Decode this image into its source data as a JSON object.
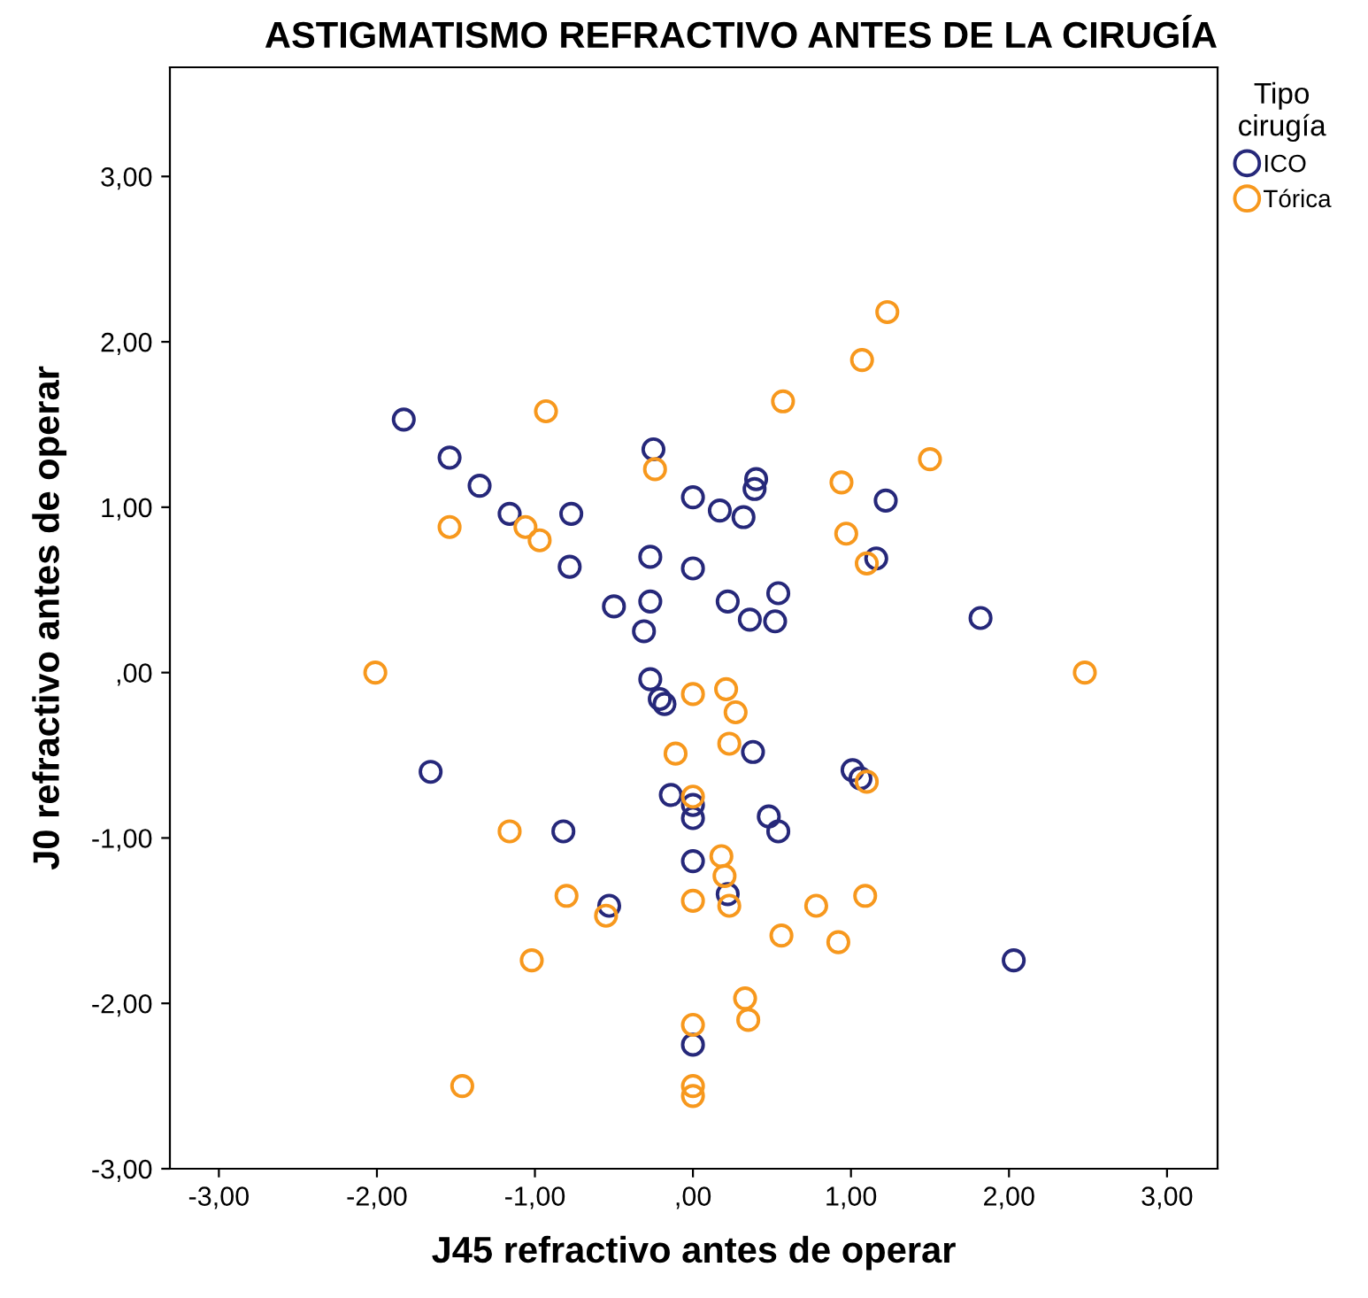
{
  "chart_data": {
    "type": "scatter",
    "title": "ASTIGMATISMO REFRACTIVO ANTES DE LA CIRUGÍA",
    "xlabel": "J45 refractivo antes de operar",
    "ylabel": "J0 refractivo antes de operar",
    "legend_title": "Tipo\ncirugía",
    "legend": "right",
    "marker": "circle",
    "grid": false,
    "xlim": [
      -3.31,
      3.32
    ],
    "ylim": [
      -3.0,
      3.66
    ],
    "xticks": [
      {
        "value": -3,
        "label": "-3,00"
      },
      {
        "value": -2,
        "label": "-2,00"
      },
      {
        "value": -1,
        "label": "-1,00"
      },
      {
        "value": 0,
        "label": ",00"
      },
      {
        "value": 1,
        "label": "1,00"
      },
      {
        "value": 2,
        "label": "2,00"
      },
      {
        "value": 3,
        "label": "3,00"
      }
    ],
    "yticks": [
      {
        "value": -3,
        "label": "-3,00"
      },
      {
        "value": -2,
        "label": "-2,00"
      },
      {
        "value": -1,
        "label": "-1,00"
      },
      {
        "value": 0,
        "label": ",00"
      },
      {
        "value": 1,
        "label": "1,00"
      },
      {
        "value": 2,
        "label": "2,00"
      },
      {
        "value": 3,
        "label": "3,00"
      }
    ],
    "series": [
      {
        "name": "ICO",
        "color": "#26287a",
        "x": [
          -1.83,
          -1.54,
          -1.35,
          -1.16,
          -0.77,
          -0.78,
          -0.25,
          0,
          0.17,
          0.32,
          0.4,
          0.39,
          1.22,
          1.16,
          1.82,
          0.54,
          0.22,
          0.36,
          0.52,
          -0.5,
          -0.27,
          -0.27,
          0,
          -0.31,
          -0.27,
          -0.21,
          -0.18,
          -1.66,
          -0.82,
          -0.53,
          -0.14,
          0,
          0,
          0,
          0.22,
          0.38,
          1.01,
          1.06,
          0.48,
          0.54,
          2.03,
          0
        ],
        "values": [
          1.53,
          1.3,
          1.13,
          0.96,
          0.96,
          0.64,
          1.35,
          1.06,
          0.98,
          0.94,
          1.17,
          1.11,
          1.04,
          0.69,
          0.33,
          0.48,
          0.43,
          0.32,
          0.31,
          0.4,
          0.7,
          0.43,
          0.63,
          0.25,
          -0.04,
          -0.16,
          -0.19,
          -0.6,
          -0.96,
          -1.41,
          -0.74,
          -0.8,
          -0.88,
          -1.14,
          -1.34,
          -0.48,
          -0.59,
          -0.64,
          -0.87,
          -0.96,
          -1.74,
          -2.25
        ]
      },
      {
        "name": "Tórica",
        "color": "#f7981d",
        "x": [
          -0.93,
          -0.24,
          -1.54,
          -1.06,
          -0.97,
          -2.01,
          1.23,
          1.07,
          0.57,
          1.5,
          0.94,
          0.97,
          1.1,
          2.48,
          0,
          0.21,
          0.27,
          0.23,
          1.1,
          0,
          0.18,
          0.2,
          0.23,
          0,
          0.78,
          1.09,
          0.56,
          0.92,
          0.33,
          0.35,
          0,
          0,
          0,
          -0.11,
          -1.16,
          -0.8,
          -0.55,
          -1.02,
          -1.46
        ],
        "values": [
          1.58,
          1.23,
          0.88,
          0.88,
          0.8,
          0.0,
          2.18,
          1.89,
          1.64,
          1.29,
          1.15,
          0.84,
          0.66,
          0.0,
          -0.13,
          -0.1,
          -0.24,
          -0.43,
          -0.66,
          -0.75,
          -1.11,
          -1.23,
          -1.41,
          -1.38,
          -1.41,
          -1.35,
          -1.59,
          -1.63,
          -1.97,
          -2.1,
          -2.13,
          -2.5,
          -2.56,
          -0.49,
          -0.96,
          -1.35,
          -1.47,
          -1.74,
          -2.5
        ]
      }
    ]
  }
}
